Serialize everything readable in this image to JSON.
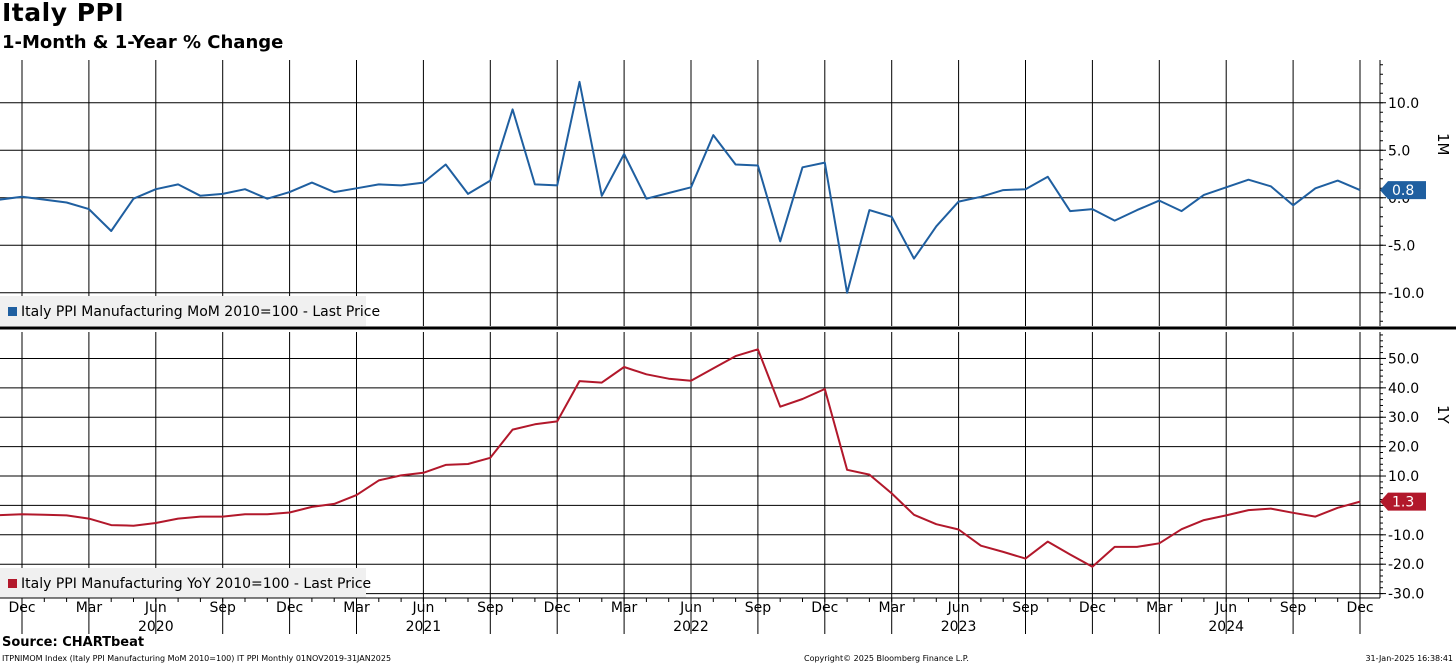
{
  "header": {
    "title": "Italy PPI",
    "subtitle": "1-Month & 1-Year % Change"
  },
  "footer": {
    "source": "Source: CHARTbeat",
    "left_note": "ITPNIMOM Index (Italy PPI Manufacturing MoM 2010=100) IT PPI  Monthly 01NOV2019-31JAN2025",
    "copyright": "Copyright© 2025 Bloomberg Finance L.P.",
    "timestamp": "31-Jan-2025 16:38:41"
  },
  "chart_data": [
    {
      "type": "line",
      "panel_label": "1M",
      "legend": "Italy PPI Manufacturing MoM 2010=100 - Last Price",
      "last_value_label": "0.8",
      "color": "#1f5fa0",
      "ylim": [
        -13.5,
        14.5
      ],
      "yticks": [
        10.0,
        5.0,
        0.0,
        -5.0,
        -10.0
      ],
      "ytick_labels": [
        "10.0",
        "5.0",
        "0.0",
        "-5.0",
        "-10.0"
      ],
      "grid": true,
      "x": [
        "2019-11",
        "2019-12",
        "2020-01",
        "2020-02",
        "2020-03",
        "2020-04",
        "2020-05",
        "2020-06",
        "2020-07",
        "2020-08",
        "2020-09",
        "2020-10",
        "2020-11",
        "2020-12",
        "2021-01",
        "2021-02",
        "2021-03",
        "2021-04",
        "2021-05",
        "2021-06",
        "2021-07",
        "2021-08",
        "2021-09",
        "2021-10",
        "2021-11",
        "2021-12",
        "2022-01",
        "2022-02",
        "2022-03",
        "2022-04",
        "2022-05",
        "2022-06",
        "2022-07",
        "2022-08",
        "2022-09",
        "2022-10",
        "2022-11",
        "2022-12",
        "2023-01",
        "2023-02",
        "2023-03",
        "2023-04",
        "2023-05",
        "2023-06",
        "2023-07",
        "2023-08",
        "2023-09",
        "2023-10",
        "2023-11",
        "2023-12",
        "2024-01",
        "2024-02",
        "2024-03",
        "2024-04",
        "2024-05",
        "2024-06",
        "2024-07",
        "2024-08",
        "2024-09",
        "2024-10",
        "2024-11",
        "2024-12"
      ],
      "values": [
        -0.2,
        0.1,
        -0.2,
        -0.5,
        -1.2,
        -3.5,
        -0.1,
        0.9,
        1.4,
        0.2,
        0.4,
        0.9,
        -0.1,
        0.6,
        1.6,
        0.6,
        1.0,
        1.4,
        1.3,
        1.6,
        3.5,
        0.4,
        1.8,
        9.3,
        1.4,
        1.3,
        12.2,
        0.2,
        4.6,
        -0.1,
        0.5,
        1.1,
        6.6,
        3.5,
        3.4,
        -4.6,
        3.2,
        3.7,
        -10.0,
        -1.3,
        -2.0,
        -6.4,
        -3.0,
        -0.4,
        0.1,
        0.8,
        0.9,
        2.2,
        -1.4,
        -1.2,
        -2.4,
        -1.3,
        -0.3,
        -1.4,
        0.3,
        1.1,
        1.9,
        1.2,
        -0.8,
        1.0,
        1.8,
        0.8
      ]
    },
    {
      "type": "line",
      "panel_label": "1Y",
      "legend": "Italy PPI Manufacturing YoY 2010=100 - Last Price",
      "last_value_label": "1.3",
      "color": "#b2182b",
      "ylim": [
        -31.5,
        59
      ],
      "yticks": [
        50.0,
        40.0,
        30.0,
        20.0,
        10.0,
        0.0,
        -10.0,
        -20.0,
        -30.0
      ],
      "ytick_labels": [
        "50.0",
        "40.0",
        "30.0",
        "20.0",
        "10.0",
        "0.0",
        "-10.0",
        "-20.0",
        "-30.0"
      ],
      "grid": true,
      "x": [
        "2019-11",
        "2019-12",
        "2020-01",
        "2020-02",
        "2020-03",
        "2020-04",
        "2020-05",
        "2020-06",
        "2020-07",
        "2020-08",
        "2020-09",
        "2020-10",
        "2020-11",
        "2020-12",
        "2021-01",
        "2021-02",
        "2021-03",
        "2021-04",
        "2021-05",
        "2021-06",
        "2021-07",
        "2021-08",
        "2021-09",
        "2021-10",
        "2021-11",
        "2021-12",
        "2022-01",
        "2022-02",
        "2022-03",
        "2022-04",
        "2022-05",
        "2022-06",
        "2022-07",
        "2022-08",
        "2022-09",
        "2022-10",
        "2022-11",
        "2022-12",
        "2023-01",
        "2023-02",
        "2023-03",
        "2023-04",
        "2023-05",
        "2023-06",
        "2023-07",
        "2023-08",
        "2023-09",
        "2023-10",
        "2023-11",
        "2023-12",
        "2024-01",
        "2024-02",
        "2024-03",
        "2024-04",
        "2024-05",
        "2024-06",
        "2024-07",
        "2024-08",
        "2024-09",
        "2024-10",
        "2024-11",
        "2024-12"
      ],
      "values": [
        -3.3,
        -3.0,
        -3.2,
        -3.4,
        -4.5,
        -6.7,
        -6.9,
        -6.0,
        -4.5,
        -3.8,
        -3.8,
        -3.0,
        -3.0,
        -2.4,
        -0.5,
        0.5,
        3.5,
        8.5,
        10.2,
        11.1,
        13.8,
        14.1,
        16.2,
        25.8,
        27.6,
        28.6,
        42.3,
        41.8,
        47.1,
        44.6,
        43.1,
        42.4,
        46.6,
        50.8,
        53.1,
        33.6,
        36.2,
        39.6,
        12.1,
        10.5,
        4.1,
        -3.2,
        -6.4,
        -8.2,
        -13.7,
        -15.8,
        -18.1,
        -12.3,
        -16.7,
        -20.9,
        -14.1,
        -14.1,
        -12.9,
        -8.1,
        -5.0,
        -3.4,
        -1.6,
        -1.1,
        -2.5,
        -3.8,
        -0.8,
        1.3
      ]
    }
  ],
  "x_axis": {
    "month_ticks": [
      "Dec",
      "Mar",
      "Jun",
      "Sep",
      "Dec",
      "Mar",
      "Jun",
      "Sep",
      "Dec",
      "Mar",
      "Jun",
      "Sep",
      "Dec",
      "Mar",
      "Jun",
      "Sep",
      "Dec",
      "Mar",
      "Jun",
      "Sep",
      "Dec"
    ],
    "tick_dates": [
      "2019-12",
      "2020-03",
      "2020-06",
      "2020-09",
      "2020-12",
      "2021-03",
      "2021-06",
      "2021-09",
      "2021-12",
      "2022-03",
      "2022-06",
      "2022-09",
      "2022-12",
      "2023-03",
      "2023-06",
      "2023-09",
      "2023-12",
      "2024-03",
      "2024-06",
      "2024-09",
      "2024-12"
    ],
    "years": [
      "2020",
      "2021",
      "2022",
      "2023",
      "2024"
    ],
    "year_dates": [
      "2020-06",
      "2021-06",
      "2022-06",
      "2023-06",
      "2024-06"
    ]
  }
}
